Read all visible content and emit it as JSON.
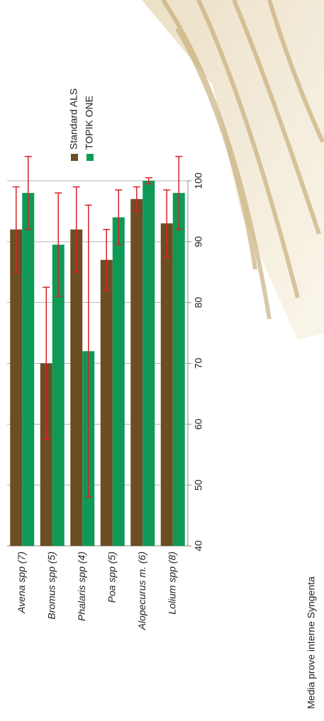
{
  "chart_data": {
    "type": "bar",
    "categories": [
      "Avena spp (7)",
      "Bromus spp (5)",
      "Phalaris spp (4)",
      "Poa spp (5)",
      "Alopecurus m. (6)",
      "Lolium spp (8)"
    ],
    "series": [
      {
        "name": "Standard ALS",
        "color": "#6b4e22",
        "values": [
          92,
          70,
          92,
          87,
          97,
          93
        ],
        "errors": [
          7,
          12.5,
          7,
          5,
          2,
          5.5
        ]
      },
      {
        "name": "TOPIK ONE",
        "color": "#0e9a56",
        "values": [
          98,
          89.5,
          72,
          94,
          100,
          98
        ],
        "errors": [
          6,
          8.5,
          24,
          4.5,
          0.5,
          6
        ]
      }
    ],
    "error_color": "#d8232a",
    "xlim": [
      40,
      100
    ],
    "xticks": [
      40,
      50,
      60,
      70,
      80,
      90,
      100
    ],
    "grid": true,
    "legend": "top-right",
    "footnote": "Media prove interne Syngenta"
  }
}
